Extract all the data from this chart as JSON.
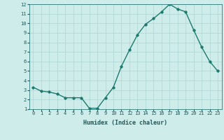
{
  "x": [
    0,
    1,
    2,
    3,
    4,
    5,
    6,
    7,
    8,
    9,
    10,
    11,
    12,
    13,
    14,
    15,
    16,
    17,
    18,
    19,
    20,
    21,
    22,
    23
  ],
  "y": [
    3.3,
    2.9,
    2.8,
    2.6,
    2.2,
    2.2,
    2.2,
    1.1,
    1.1,
    2.2,
    3.3,
    5.5,
    7.2,
    8.8,
    9.9,
    10.5,
    11.2,
    12.0,
    11.5,
    11.2,
    9.3,
    7.5,
    6.0,
    5.0
  ],
  "xlabel": "Humidex (Indice chaleur)",
  "ylabel": "",
  "xlim": [
    -0.5,
    23.5
  ],
  "ylim": [
    1,
    12
  ],
  "yticks": [
    1,
    2,
    3,
    4,
    5,
    6,
    7,
    8,
    9,
    10,
    11,
    12
  ],
  "xticks": [
    0,
    1,
    2,
    3,
    4,
    5,
    6,
    7,
    8,
    9,
    10,
    11,
    12,
    13,
    14,
    15,
    16,
    17,
    18,
    19,
    20,
    21,
    22,
    23
  ],
  "line_color": "#1e7a6e",
  "marker": "D",
  "marker_size": 1.8,
  "bg_color": "#ceecea",
  "grid_color": "#aed4d1",
  "label_color": "#1e5a5a",
  "tick_color": "#1e5a5a",
  "axis_color": "#2e7a7a",
  "line_width": 1.0,
  "tick_fontsize": 5.0,
  "xlabel_fontsize": 6.0
}
